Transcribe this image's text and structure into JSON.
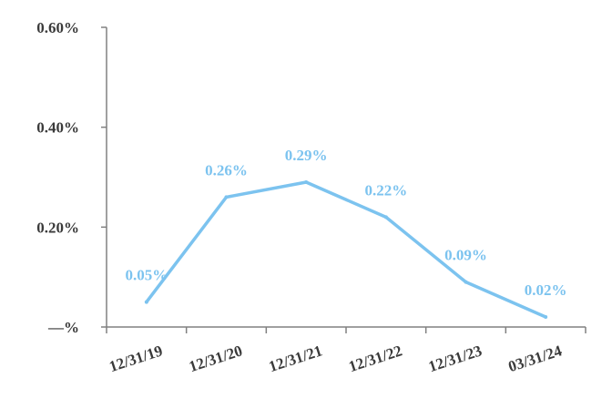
{
  "chart_data": {
    "type": "line",
    "title": "",
    "xlabel": "",
    "ylabel": "",
    "categories": [
      "12/31/19",
      "12/31/20",
      "12/31/21",
      "12/31/22",
      "12/31/23",
      "03/31/24"
    ],
    "series": [
      {
        "values": [
          0.05,
          0.26,
          0.29,
          0.22,
          0.09,
          0.02
        ],
        "data_labels": [
          "0.05%",
          "0.26%",
          "0.29%",
          "0.22%",
          "0.09%",
          "0.02%"
        ],
        "color": "#7cc3ef"
      }
    ],
    "ylim": [
      0,
      0.6
    ],
    "y_ticks": [
      {
        "value": 0,
        "label": "—%"
      },
      {
        "value": 0.2,
        "label": "0.20%"
      },
      {
        "value": 0.4,
        "label": "0.40%"
      },
      {
        "value": 0.6,
        "label": "0.60%"
      }
    ],
    "grid": false,
    "legend": "none",
    "axis_color": "#808080"
  }
}
